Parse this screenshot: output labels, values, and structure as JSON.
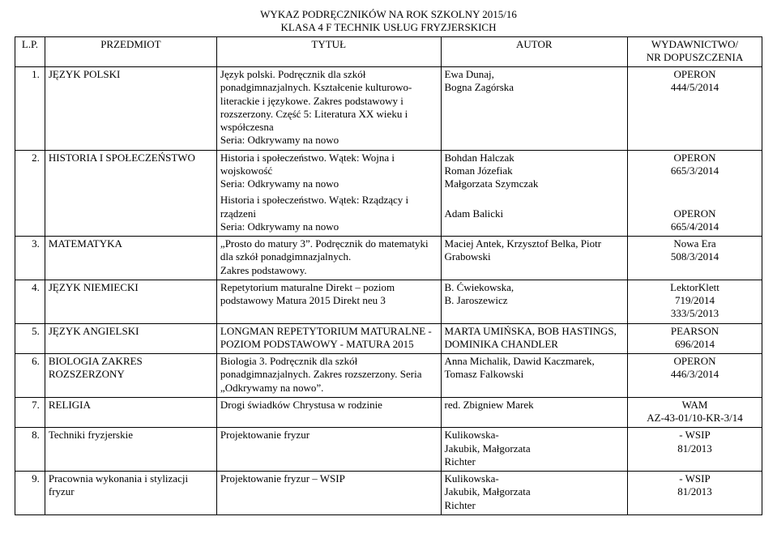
{
  "title": {
    "line1": "WYKAZ PODRĘCZNIKÓW NA ROK SZKOLNY 2015/16",
    "line2": "KLASA 4 F  TECHNIK USŁUG FRYZJERSKICH"
  },
  "columns": {
    "lp": "L.P.",
    "subject": "PRZEDMIOT",
    "title": "TYTUŁ",
    "author": "AUTOR",
    "publisher": "WYDAWNICTWO/\nNR DOPUSZCZENIA"
  },
  "rows": [
    {
      "lp": "1.",
      "subject": "JĘZYK POLSKI",
      "title": "Język polski. Podręcznik dla szkół ponadgimnazjalnych. Kształcenie kulturowo-literackie i językowe. Zakres podstawowy i rozszerzony. Część 5: Literatura XX wieku i współczesna\nSeria: Odkrywamy na nowo",
      "author": "Ewa Dunaj,\nBogna Zagórska",
      "publisher": "OPERON\n444/5/2014"
    },
    {
      "lp": "2.",
      "subject": "HISTORIA I SPOŁECZEŃSTWO",
      "title": "Historia i społeczeństwo. Wątek: Wojna i wojskowość\nSeria: Odkrywamy na nowo",
      "author": "Bohdan Halczak\nRoman Józefiak\nMałgorzata Szymczak",
      "publisher": "OPERON\n665/3/2014",
      "title2": "Historia i społeczeństwo. Wątek: Rządzący i rządzeni\nSeria: Odkrywamy na nowo",
      "author2": "\nAdam Balicki",
      "publisher2": "\nOPERON\n665/4/2014"
    },
    {
      "lp": "3.",
      "subject": "MATEMATYKA",
      "title": "„Prosto do matury 3”. Podręcznik  do matematyki dla szkół ponadgimnazjalnych.\nZakres podstawowy.",
      "author": "Maciej Antek, Krzysztof Belka, Piotr Grabowski",
      "publisher": "Nowa Era\n508/3/2014"
    },
    {
      "lp": "4.",
      "subject": "JĘZYK NIEMIECKI",
      "title": "Repetytorium maturalne Direkt – poziom podstawowy Matura 2015 Direkt neu 3",
      "author": "B. Ćwiekowska,\nB. Jaroszewicz",
      "publisher": "LektorKlett\n719/2014\n333/5/2013"
    },
    {
      "lp": "5.",
      "subject": "JĘZYK ANGIELSKI",
      "title": "LONGMAN REPETYTORIUM MATURALNE - POZIOM PODSTAWOWY - MATURA 2015",
      "author": "MARTA UMIŃSKA, BOB HASTINGS, DOMINIKA CHANDLER",
      "publisher": "PEARSON\n696/2014"
    },
    {
      "lp": "6.",
      "subject": "BIOLOGIA  ZAKRES ROZSZERZONY",
      "title": "Biologia 3. Podręcznik dla szkół ponadgimnazjalnych. Zakres rozszerzony. Seria „Odkrywamy na nowo”.",
      "author": "Anna Michalik, Dawid Kaczmarek, Tomasz Falkowski",
      "publisher": "OPERON\n446/3/2014"
    },
    {
      "lp": "7.",
      "subject": "RELIGIA",
      "title": "Drogi świadków Chrystusa w rodzinie",
      "author": "red. Zbigniew Marek",
      "publisher": "WAM\nAZ-43-01/10-KR-3/14"
    },
    {
      "lp": "8.",
      "subject": "Techniki fryzjerskie",
      "title": "Projektowanie fryzur",
      "author": "Kulikowska-\nJakubik, Małgorzata\nRichter",
      "publisher": "- WSIP\n81/2013"
    },
    {
      "lp": "9.",
      "subject": "Pracownia wykonania i stylizacji fryzur",
      "title": "Projektowanie fryzur  – WSIP",
      "author": "Kulikowska-\nJakubik, Małgorzata\nRichter",
      "publisher": "- WSIP\n81/2013"
    }
  ]
}
